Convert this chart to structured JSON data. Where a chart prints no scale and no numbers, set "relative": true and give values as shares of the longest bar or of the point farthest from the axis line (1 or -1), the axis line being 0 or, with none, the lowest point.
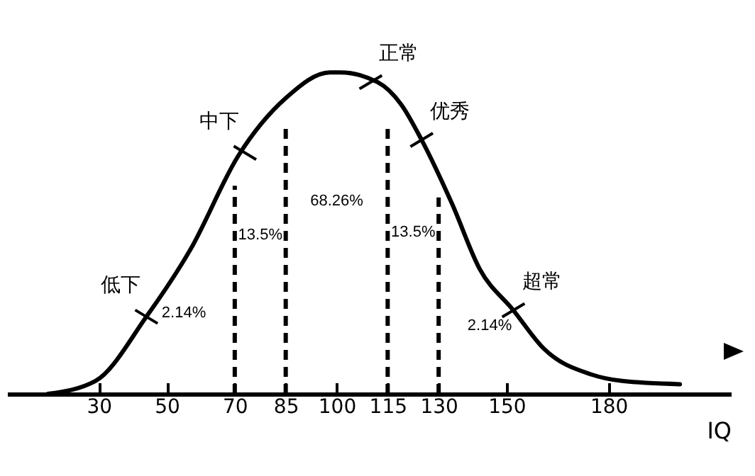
{
  "chart_data": {
    "type": "line",
    "relative": true,
    "xlabel": "IQ",
    "x": [
      15,
      29,
      44,
      57,
      71,
      85,
      98,
      101,
      112,
      119,
      125,
      134,
      142,
      152,
      161,
      175,
      184,
      201
    ],
    "series": [
      {
        "color": "#000000",
        "values": [
          0,
          0.04,
          0.24,
          0.45,
          0.74,
          0.92,
          1,
          1,
          0.97,
          0.9,
          0.79,
          0.59,
          0.39,
          0.26,
          0.14,
          0.06,
          0.04,
          0.03
        ]
      }
    ],
    "xlim": [
      3,
      216
    ],
    "xticks": [
      30,
      50,
      70,
      85,
      100,
      115,
      130,
      150,
      180
    ],
    "grid": false,
    "marker": "none",
    "line_style": "solid",
    "ref_lines": [
      {
        "axis": "x",
        "value": 70,
        "line_style": "dashed",
        "color": "#000000"
      },
      {
        "axis": "x",
        "value": 85,
        "line_style": "dashed",
        "color": "#000000"
      },
      {
        "axis": "x",
        "value": 115,
        "line_style": "dashed",
        "color": "#000000"
      },
      {
        "axis": "x",
        "value": 130,
        "line_style": "dashed",
        "color": "#000000"
      }
    ],
    "annotations": [
      {
        "text": "正常",
        "x": 110,
        "y": 0.97
      },
      {
        "text": "中下",
        "x": 73,
        "y": 0.75
      },
      {
        "text": "低下",
        "x": 44,
        "y": 0.24
      },
      {
        "text": "优秀",
        "x": 125,
        "y": 0.79
      },
      {
        "text": "超常",
        "x": 152,
        "y": 0.26
      },
      "2.14%",
      "13.5%",
      "68.26%",
      "13.5%",
      "2.14%"
    ]
  }
}
